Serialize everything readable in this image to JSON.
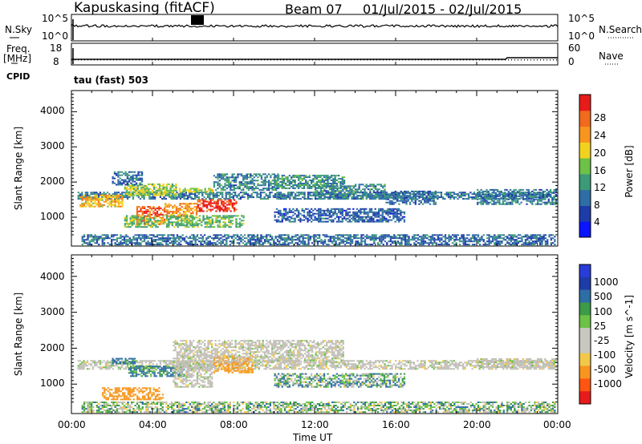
{
  "header": {
    "station": "Kapuskasing (fitACF)",
    "beam": "Beam 07",
    "dates": "01/Jul/2015 - 02/Jul/2015"
  },
  "strips": {
    "nsky_label": "N.Sky",
    "nsky_ticks": [
      "10^5",
      "10^0"
    ],
    "nsearch_label": "N.Search",
    "nsearch_ticks": [
      "10^5",
      "10^0"
    ],
    "freq_label": "Freq.",
    "freq_unit": "[MHz]",
    "freq_ticks": [
      "18",
      "8"
    ],
    "nave_label": "Nave",
    "nave_ticks": [
      "60",
      "0"
    ],
    "cpid_label": "CPID",
    "cpid_value": "tau (fast) 503"
  },
  "colors": {
    "power_scale": [
      "#0a14ff",
      "#1e3ca8",
      "#2e6ea6",
      "#3c9a78",
      "#6cc146",
      "#f2d21e",
      "#f7951f",
      "#f26a1e",
      "#e81b1b"
    ],
    "velocity_scale": [
      "#e81b1b",
      "#ff5511",
      "#f7951f",
      "#f2c84b",
      "#c8c8c0",
      "#c8c8c0",
      "#6cc146",
      "#3c9a48",
      "#2e6ea6",
      "#1e3ca8",
      "#2a3cd8"
    ],
    "ground_scatter": "#c0beb6"
  },
  "chart_data": [
    {
      "type": "heatmap",
      "name": "power",
      "ylabel": "Slant Range [km]",
      "y_ticks": [
        "1000",
        "2000",
        "3000",
        "4000"
      ],
      "ylim": [
        180,
        4600
      ],
      "colorbar_label": "Power [dB]",
      "colorbar_ticks": [
        "4",
        "8",
        "12",
        "16",
        "20",
        "24",
        "28"
      ],
      "colorbar_range": [
        0,
        30
      ],
      "regions": [
        {
          "t": [
            0.3,
            23.9
          ],
          "r": [
            1500,
            1720
          ],
          "level": 9
        },
        {
          "t": [
            0.4,
            2.6
          ],
          "r": [
            1280,
            1640
          ],
          "level": 20
        },
        {
          "t": [
            2.6,
            5.2
          ],
          "r": [
            1600,
            1960
          ],
          "level": 16
        },
        {
          "t": [
            3.2,
            4.6
          ],
          "r": [
            780,
            1300
          ],
          "level": 26
        },
        {
          "t": [
            4.6,
            6.2
          ],
          "r": [
            1000,
            1400
          ],
          "level": 22
        },
        {
          "t": [
            6.2,
            8.2
          ],
          "r": [
            1150,
            1500
          ],
          "level": 28
        },
        {
          "t": [
            5.3,
            7.0
          ],
          "r": [
            1700,
            1850
          ],
          "level": 17
        },
        {
          "t": [
            7.0,
            10.2
          ],
          "r": [
            1750,
            2250
          ],
          "level": 10
        },
        {
          "t": [
            10.0,
            13.5
          ],
          "r": [
            1800,
            2200
          ],
          "level": 11
        },
        {
          "t": [
            12.0,
            15.5
          ],
          "r": [
            1500,
            1950
          ],
          "level": 10
        },
        {
          "t": [
            2.6,
            8.5
          ],
          "r": [
            700,
            1050
          ],
          "level": 14
        },
        {
          "t": [
            10.0,
            16.5
          ],
          "r": [
            850,
            1250
          ],
          "level": 7
        },
        {
          "t": [
            0.5,
            23.9
          ],
          "r": [
            200,
            500
          ],
          "level": 8
        },
        {
          "t": [
            2.0,
            3.5
          ],
          "r": [
            1900,
            2300
          ],
          "level": 8
        },
        {
          "t": [
            20.0,
            24.0
          ],
          "r": [
            1350,
            1800
          ],
          "level": 9
        },
        {
          "t": [
            15.5,
            18.0
          ],
          "r": [
            1350,
            1750
          ],
          "level": 8
        }
      ]
    },
    {
      "type": "heatmap",
      "name": "velocity",
      "ylabel": "Slant Range [km]",
      "y_ticks": [
        "1000",
        "2000",
        "3000",
        "4000"
      ],
      "ylim": [
        180,
        4600
      ],
      "xlabel": "Time UT",
      "x_ticks": [
        "00:00",
        "04:00",
        "08:00",
        "12:00",
        "16:00",
        "20:00",
        "00:00"
      ],
      "xlim": [
        0,
        24
      ],
      "colorbar_label": "Velocity [m s^-1]",
      "colorbar_ticks": [
        "1000",
        "500",
        "100",
        "25",
        "-25",
        "-100",
        "-500",
        "-1000"
      ],
      "regions": [
        {
          "t": [
            0.3,
            23.9
          ],
          "r": [
            1400,
            1650
          ],
          "v": 0
        },
        {
          "t": [
            2.0,
            3.2
          ],
          "r": [
            1550,
            1750
          ],
          "v": 150
        },
        {
          "t": [
            2.8,
            5.6
          ],
          "r": [
            1200,
            1500
          ],
          "v": 120
        },
        {
          "t": [
            5.0,
            7.0
          ],
          "r": [
            900,
            1600
          ],
          "v": 0
        },
        {
          "t": [
            7.0,
            9.0
          ],
          "r": [
            1300,
            1800
          ],
          "v": -150
        },
        {
          "t": [
            1.5,
            4.6
          ],
          "r": [
            550,
            900
          ],
          "v": -180
        },
        {
          "t": [
            5.0,
            13.5
          ],
          "r": [
            1600,
            2250
          ],
          "v": 0
        },
        {
          "t": [
            10.0,
            16.5
          ],
          "r": [
            900,
            1300
          ],
          "v": 60
        },
        {
          "t": [
            20.0,
            24.0
          ],
          "r": [
            1450,
            1700
          ],
          "v": 0
        },
        {
          "t": [
            0.5,
            23.9
          ],
          "r": [
            200,
            500
          ],
          "v": 40
        }
      ]
    }
  ]
}
